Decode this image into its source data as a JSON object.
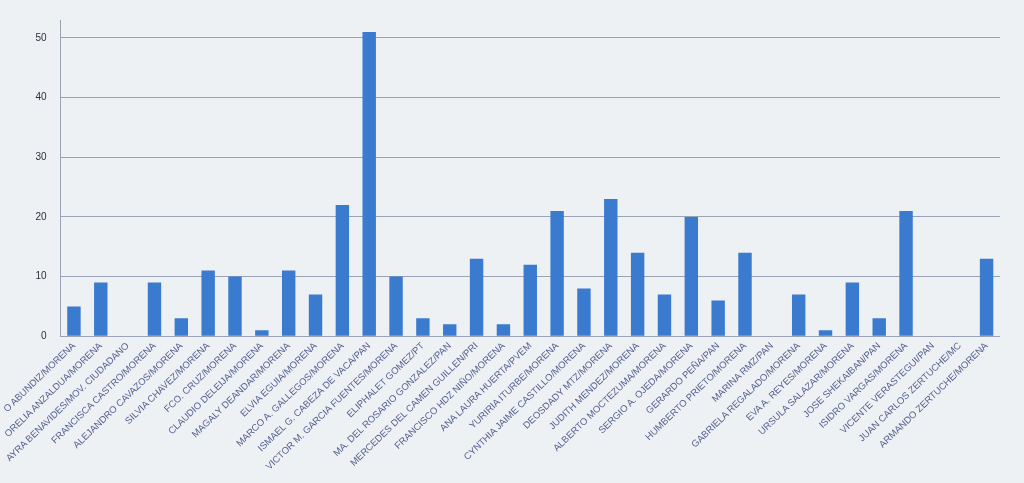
{
  "chart_data": {
    "type": "bar",
    "categories": [
      "O ABUNDIZ/MORENA",
      "ORELIA ANZALDUA/MORENA",
      "AYRA BENAVIDES/MOV. CIUDADANO",
      "FRANCISCA CASTRO/MORENA",
      "ALEJANDRO CAVAZOS/MORENA",
      "SILVIA CHAVEZ/MORENA",
      "FCO. CRUZ/MORENA",
      "CLAUDIO DELEIJA/MORENA",
      "MAGALY DEANDAR/MORENA",
      "ELVIA EGUIA/MORENA",
      "MARCO A. GALLEGOS/MORENA",
      "ISMAEL G. CABEZA DE VACA/PAN",
      "VICTOR M. GARCIA FUENTES/MORENA",
      "ELIPHALET GOMEZ/PT",
      "MA. DEL ROSARIO GONZALEZ/PAN",
      "MERCEDES DEL CAMEN GUILLEN/PRI",
      "FRANCISCO HDZ NIÑO/MORENA",
      "ANA LAURA HUERTA/PVEM",
      "YURIRIA ITURBE/MORENA",
      "CYNTHIA JAIME CASTILLO/MORENA",
      "DEOSDADY MTZ/MORENA",
      "JUDITH MENDEZ/MORENA",
      "ALBERTO MOCTEZUMA/MORENA",
      "SERGIO A. OJEDA/MORENA",
      "GERARDO PEÑA/PAN",
      "HUMBERTO PRIETO/MORENA",
      "MARINA RMZ/PAN",
      "GABRIELA REGALADO/MORENA",
      "EVA A. REYES/MORENA",
      "URSULA SALAZAR/MORENA",
      "JOSE SHEKAIBAN/PAN",
      "ISIDRO VARGAS/MORENA",
      "VICENTE VERASTEGUI/PAN",
      "JUAN CARLOS ZERTUCHE/MC",
      "ARMANDO ZERTUCHE/MORENA"
    ],
    "values": [
      5,
      9,
      0,
      9,
      3,
      11,
      10,
      1,
      11,
      7,
      22,
      51,
      10,
      3,
      2,
      13,
      2,
      12,
      21,
      8,
      23,
      14,
      7,
      20,
      6,
      14,
      0,
      7,
      1,
      9,
      3,
      21,
      0,
      0,
      13
    ],
    "color": "#3a7bd0",
    "ylim": [
      0,
      53
    ],
    "yticks": [
      0,
      10,
      20,
      30,
      40,
      50
    ],
    "grid": "y"
  }
}
